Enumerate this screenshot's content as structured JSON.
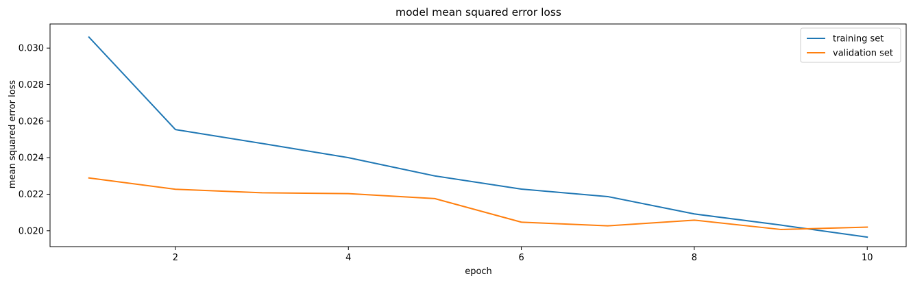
{
  "chart_data": {
    "type": "line",
    "title": "model mean squared error loss",
    "xlabel": "epoch",
    "ylabel": "mean squared error loss",
    "x": [
      1,
      2,
      3,
      4,
      5,
      6,
      7,
      8,
      9,
      10
    ],
    "xlim": [
      0.55,
      10.45
    ],
    "ylim": [
      0.01913,
      0.03132
    ],
    "xticks": [
      2,
      4,
      6,
      8,
      10
    ],
    "xtick_labels": [
      "2",
      "4",
      "6",
      "8",
      "10"
    ],
    "yticks": [
      0.02,
      0.022,
      0.024,
      0.026,
      0.028,
      0.03
    ],
    "ytick_labels": [
      "0.020",
      "0.022",
      "0.024",
      "0.026",
      "0.028",
      "0.030"
    ],
    "grid": false,
    "legend_position": "top-right",
    "series": [
      {
        "name": "training set",
        "color": "#1f77b4",
        "values": [
          0.0306,
          0.02554,
          0.02478,
          0.024,
          0.023,
          0.02228,
          0.02187,
          0.02092,
          0.02031,
          0.01965
        ]
      },
      {
        "name": "validation set",
        "color": "#ff7f0e",
        "values": [
          0.02289,
          0.02227,
          0.02208,
          0.02203,
          0.02176,
          0.02047,
          0.02027,
          0.02058,
          0.02007,
          0.0202
        ]
      }
    ]
  }
}
